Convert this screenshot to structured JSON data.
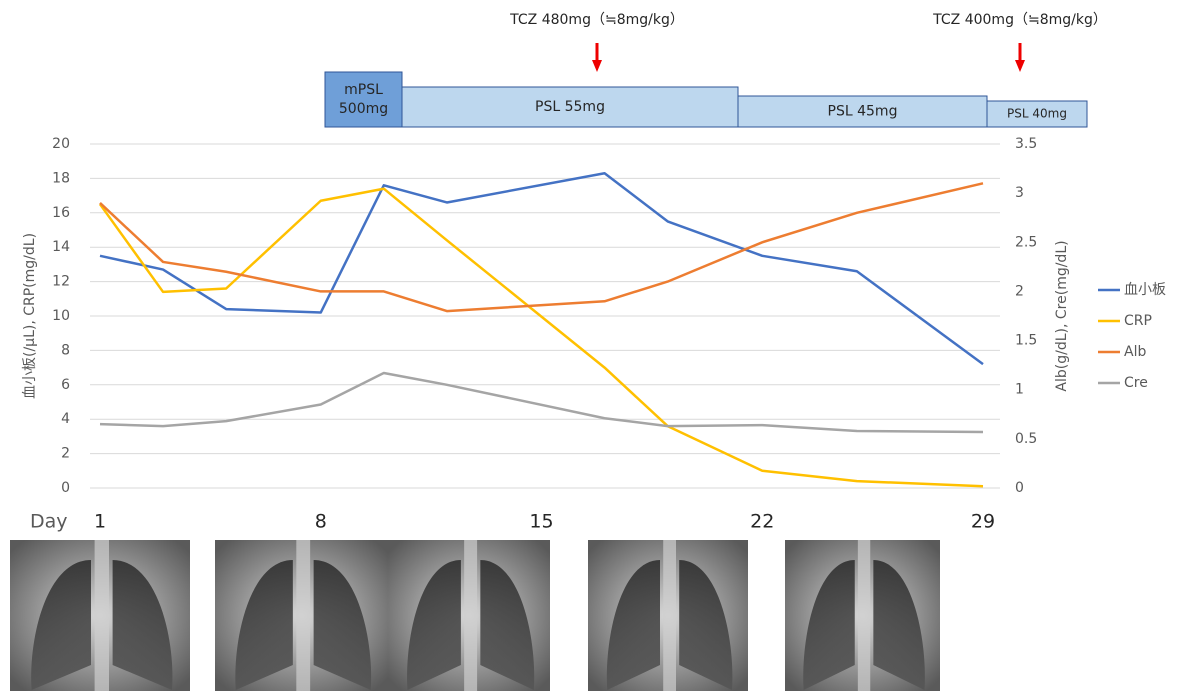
{
  "chart_data": {
    "type": "line",
    "x_title": "Day",
    "y_title": "血小板(/μL), CRP(mg/dL)",
    "y2_title": "Alb(g/dL), Cre(mg/dL)",
    "x": [
      1,
      3,
      5,
      8,
      10,
      12,
      17,
      19,
      22,
      25,
      29
    ],
    "xlim": [
      1,
      29
    ],
    "xticks": [
      1,
      8,
      15,
      22,
      29
    ],
    "ylim": [
      0,
      20
    ],
    "yticks": [
      0,
      2,
      4,
      6,
      8,
      10,
      12,
      14,
      16,
      18,
      20
    ],
    "y2lim": [
      0,
      3.5
    ],
    "y2ticks": [
      0,
      0.5,
      1,
      1.5,
      2,
      2.5,
      3,
      3.5
    ],
    "grid": true,
    "legend": "right",
    "series": [
      {
        "name": "血小板",
        "color": "#4472c4",
        "values": [
          13.5,
          12.7,
          10.4,
          10.2,
          17.6,
          16.6,
          18.3,
          15.5,
          13.5,
          12.6,
          7.2
        ]
      },
      {
        "name": "CRP",
        "color": "#ffc000",
        "values": [
          16.5,
          11.4,
          11.6,
          16.7,
          17.4,
          14.4,
          7,
          3.6,
          1,
          0.4,
          0.1
        ]
      },
      {
        "name": "Alb",
        "color": "#ed7d31",
        "axis": "y2",
        "values": [
          2.9,
          2.3,
          2.2,
          2,
          2,
          1.8,
          1.9,
          2.1,
          2.5,
          2.8,
          3.1
        ]
      },
      {
        "name": "Cre",
        "color": "#a5a5a5",
        "axis": "y2",
        "values": [
          0.65,
          0.63,
          0.68,
          0.85,
          1.17,
          1.05,
          0.71,
          0.63,
          0.64,
          0.58,
          0.57
        ]
      }
    ],
    "treatments": [
      {
        "label": [
          "mPSL",
          "500mg"
        ],
        "color": "#6f9fd8"
      },
      {
        "label": [
          "PSL 55mg"
        ],
        "color": "#bdd7ee"
      },
      {
        "label": [
          "PSL 45mg"
        ],
        "color": "#bdd7ee"
      },
      {
        "label": [
          "PSL 40mg"
        ],
        "color": "#bdd7ee"
      }
    ],
    "annotations": [
      "TCZ 480mg（≒8mg/kg）",
      "TCZ 400mg（≒8mg/kg）"
    ]
  }
}
